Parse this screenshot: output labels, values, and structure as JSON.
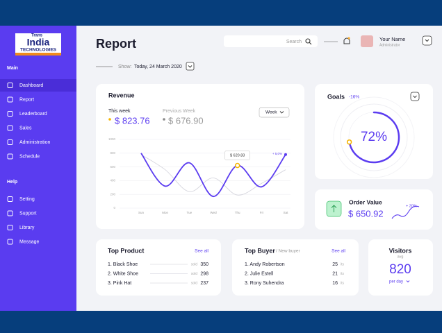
{
  "logo": {
    "top": "Trans",
    "main": "India",
    "sub": "TECHNOLOGIES"
  },
  "sidebar": {
    "sections": [
      {
        "title": "Main",
        "items": [
          "Dashboard",
          "Report",
          "Leaderboard",
          "Sales",
          "Administration",
          "Schedule"
        ]
      },
      {
        "title": "Help",
        "items": [
          "Setting",
          "Support",
          "Library",
          "Message"
        ]
      }
    ]
  },
  "header": {
    "title": "Report",
    "search": "Search",
    "user": {
      "name": "Your Name",
      "role": "Administrator"
    },
    "show_label": "Show:",
    "date": "Today, 24 March 2020"
  },
  "revenue": {
    "title": "Revenue",
    "this_week": {
      "label": "This week",
      "value": "$ 823.76"
    },
    "previous_week": {
      "label": "Previous Week",
      "value": "$ 676.90"
    },
    "period": "Week",
    "chart": {
      "type": "line",
      "categories": [
        "Sun",
        "Mon",
        "Tue",
        "Wed",
        "Thu",
        "Fri",
        "Sat"
      ],
      "series": [
        {
          "color": "#5b3cf0",
          "values": [
            800,
            320,
            660,
            170,
            620.83,
            310,
            780
          ]
        },
        {
          "color": "#d6d6de",
          "values": [
            780,
            560,
            240,
            440,
            190,
            360,
            560
          ]
        }
      ],
      "ylim": [
        0,
        1000
      ],
      "yticks": [
        0,
        200,
        400,
        600,
        800,
        1000
      ],
      "grid": true,
      "tooltip": "$ 620.83",
      "change": "+ 5,0%"
    }
  },
  "goals": {
    "title": "Goals",
    "change": "-16%",
    "value": 72,
    "value_label": "72%"
  },
  "order": {
    "title": "Order Value",
    "value": "$ 650.92",
    "change": "+ 20%"
  },
  "top_product": {
    "title": "Top Product",
    "see_all": "See all",
    "rows": [
      {
        "name": "1. Black Shoe",
        "unit": "sold",
        "value": 350
      },
      {
        "name": "2. White Shoe",
        "unit": "sold",
        "value": 298
      },
      {
        "name": "3. Pink Hat",
        "unit": "sold",
        "value": 237
      }
    ]
  },
  "top_buyer": {
    "title": "Top Buyer",
    "subtitle": "/ New buyer",
    "see_all": "See all",
    "rows": [
      {
        "name": "1. Andy Robertson",
        "value": 25,
        "unit": "its"
      },
      {
        "name": "2. Julie Estell",
        "value": 21,
        "unit": "its"
      },
      {
        "name": "3. Rony Suhendra",
        "value": 16,
        "unit": "its"
      }
    ]
  },
  "visitors": {
    "title": "Visitors",
    "subtitle": "avg",
    "value": 820,
    "period": "per day"
  }
}
